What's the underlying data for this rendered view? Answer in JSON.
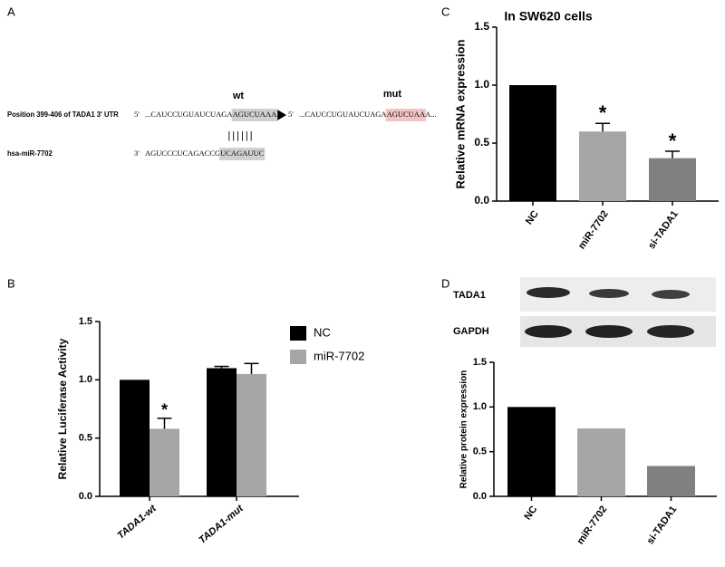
{
  "sequence_figure": {
    "panel": "A",
    "wt_label": "wt",
    "mut_label": "mut",
    "pairing": "||||||",
    "sequences": [
      {
        "label": "Position 399-406 of TADA1 3' UTR",
        "segments": [
          {
            "prime": "5'",
            "parts": [
              {
                "text": "...CAUCCUGUAUCUAGA",
                "highlight": "none"
              },
              {
                "text": "AGUCUAAA",
                "highlight": "grey"
              },
              {
                "text": "...",
                "highlight": "none"
              }
            ]
          },
          {
            "prime": "5'",
            "parts": [
              {
                "text": "...CAUCCUGUAUCUAGA",
                "highlight": "none"
              },
              {
                "text": "AGUCUAA",
                "highlight": "red"
              },
              {
                "text": "A...",
                "highlight": "none"
              }
            ]
          }
        ]
      },
      {
        "label": "hsa-miR-7702",
        "segments": [
          {
            "prime": "3'",
            "parts": [
              {
                "text": "AGUCCCUCAGACCG",
                "highlight": "none"
              },
              {
                "text": "UCAGAUUC",
                "highlight": "grey"
              }
            ]
          }
        ]
      }
    ]
  },
  "chart_data": [
    {
      "type": "grouped_bar",
      "panel": "B",
      "ylabel": "Relative Luciferase Activity",
      "categories": [
        "TADA1-wt",
        "TADA1-mut"
      ],
      "series": [
        {
          "name": "NC",
          "color": "#000000",
          "values": [
            1.0,
            1.1
          ],
          "errors": [
            0,
            0.015
          ],
          "significance": [
            null,
            null
          ]
        },
        {
          "name": "miR-7702",
          "color": "#a6a6a6",
          "values": [
            0.58,
            1.05
          ],
          "errors": [
            0.09,
            0.09
          ],
          "significance": [
            "*",
            null
          ]
        }
      ],
      "ylim": [
        0,
        1.5
      ],
      "yticks": [
        {
          "value": 0,
          "label": "0.0"
        },
        0.5,
        {
          "value": 1,
          "label": "1.0"
        },
        1.5
      ]
    },
    {
      "type": "bar",
      "panel": "C",
      "title": "In SW620 cells",
      "ylabel": "Relative mRNA expression",
      "categories": [
        "NC",
        "miR-7702",
        "si-TADA1"
      ],
      "values": [
        1.0,
        0.6,
        0.37
      ],
      "errors": [
        0,
        0.07,
        0.06
      ],
      "significance": [
        null,
        "*",
        "*"
      ],
      "colors": [
        "#000000",
        "#a6a6a6",
        "#808080"
      ],
      "ylim": [
        0,
        1.5
      ],
      "yticks": [
        {
          "value": 0,
          "label": "0.0"
        },
        0.5,
        {
          "value": 1,
          "label": "1.0"
        },
        1.5
      ]
    },
    {
      "type": "bar",
      "panel": "D",
      "ylabel": "Relative protein expression",
      "blot_labels": [
        "TADA1",
        "GAPDH"
      ],
      "categories": [
        "NC",
        "miR-7702",
        "si-TADA1"
      ],
      "values": [
        1.0,
        0.76,
        0.34
      ],
      "colors": [
        "#000000",
        "#a6a6a6",
        "#808080"
      ],
      "ylim": [
        0,
        1.5
      ],
      "yticks": [
        {
          "value": 0,
          "label": "0.0"
        },
        0.5,
        {
          "value": 1,
          "label": "1.0"
        },
        1.5
      ]
    }
  ]
}
